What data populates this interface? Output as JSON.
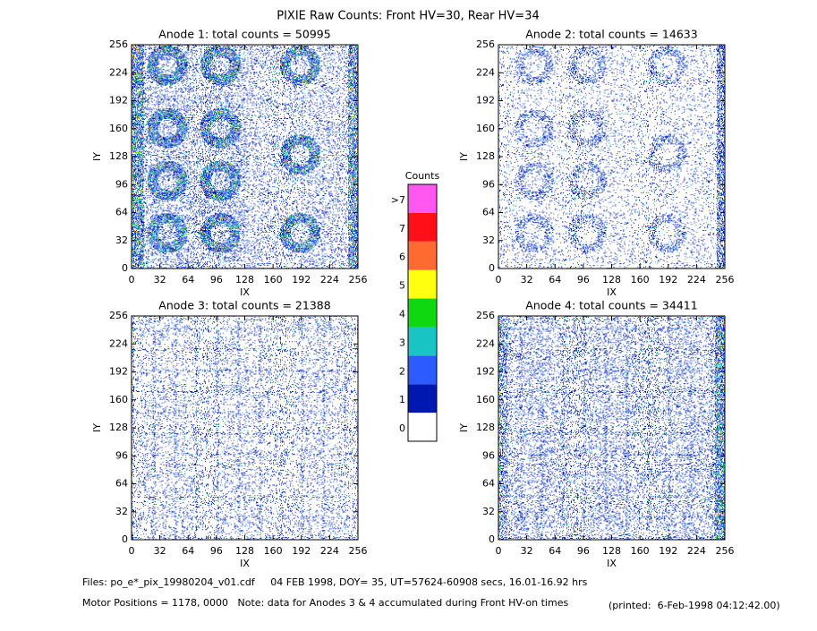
{
  "title": "PIXIE Raw Counts:  Front HV=30, Rear HV=34",
  "chart_data": [
    {
      "type": "heatmap",
      "title": "Anode 1: total counts = 50995",
      "xlabel": "IX",
      "ylabel": "IY",
      "xlim": [
        0,
        256
      ],
      "ylim": [
        0,
        256
      ],
      "xticks": [
        0,
        32,
        64,
        96,
        128,
        160,
        192,
        224,
        256
      ],
      "yticks": [
        0,
        32,
        64,
        96,
        128,
        160,
        192,
        224,
        256
      ]
    },
    {
      "type": "heatmap",
      "title": "Anode 2: total counts = 14633",
      "xlabel": "IX",
      "ylabel": "IY",
      "xlim": [
        0,
        256
      ],
      "ylim": [
        0,
        256
      ],
      "xticks": [
        0,
        32,
        64,
        96,
        128,
        160,
        192,
        224,
        256
      ],
      "yticks": [
        0,
        32,
        64,
        96,
        128,
        160,
        192,
        224,
        256
      ]
    },
    {
      "type": "heatmap",
      "title": "Anode 3: total counts = 21388",
      "xlabel": "IX",
      "ylabel": "IY",
      "xlim": [
        0,
        256
      ],
      "ylim": [
        0,
        256
      ],
      "xticks": [
        0,
        32,
        64,
        96,
        128,
        160,
        192,
        224,
        256
      ],
      "yticks": [
        0,
        32,
        64,
        96,
        128,
        160,
        192,
        224,
        256
      ]
    },
    {
      "type": "heatmap",
      "title": "Anode 4: total counts = 34411",
      "xlabel": "IX",
      "ylabel": "IY",
      "xlim": [
        0,
        256
      ],
      "ylim": [
        0,
        256
      ],
      "xticks": [
        0,
        32,
        64,
        96,
        128,
        160,
        192,
        224,
        256
      ],
      "yticks": [
        0,
        32,
        64,
        96,
        128,
        160,
        192,
        224,
        256
      ]
    }
  ],
  "colorbar": {
    "title": "Counts",
    "labels": [
      "0",
      "1",
      "2",
      "3",
      "4",
      "5",
      "6",
      "7",
      ">7"
    ],
    "colors": [
      "#ffffff",
      "#0018b0",
      "#2c5cff",
      "#18c4c4",
      "#10d810",
      "#ffff10",
      "#ff6a30",
      "#ff1018",
      "#ff58f0"
    ]
  },
  "footer": {
    "files": "Files: po_e*_pix_19980204_v01.cdf     04 FEB 1998, DOY= 35, UT=57624-60908 secs, 16.01-16.92 hrs",
    "motor": "Motor Positions = 1178, 0000   Note: data for Anodes 3 & 4 accumulated during Front HV-on times",
    "printed": "(printed:  6-Feb-1998 04:12:42.00)"
  }
}
